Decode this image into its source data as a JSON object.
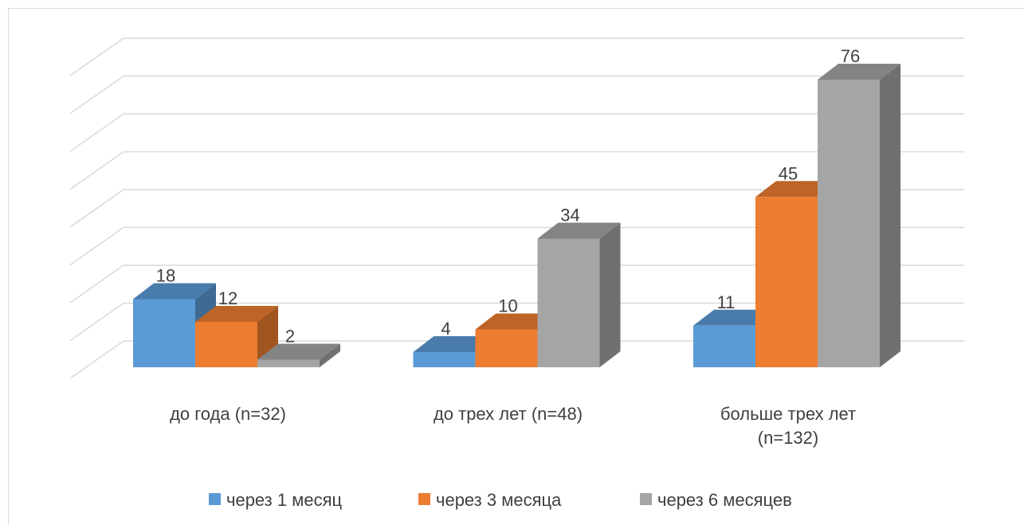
{
  "chart_data": {
    "type": "bar3d",
    "categories": [
      "до года (n=32)",
      "до трех лет (n=48)",
      "больше трех лет (n=132)"
    ],
    "series": [
      {
        "name": "через 1 месяц",
        "color": "#5b9bd5",
        "values": [
          18,
          4,
          11
        ]
      },
      {
        "name": "через 3 месяца",
        "color": "#ed7d31",
        "values": [
          12,
          10,
          45
        ]
      },
      {
        "name": "через 6 месяцев",
        "color": "#a5a5a5",
        "values": [
          2,
          34,
          76
        ]
      }
    ],
    "ylim": [
      0,
      80
    ],
    "yticks": [
      0,
      10,
      20,
      30,
      40,
      50,
      60,
      70,
      80
    ],
    "grid": true,
    "legend": "bottom"
  }
}
